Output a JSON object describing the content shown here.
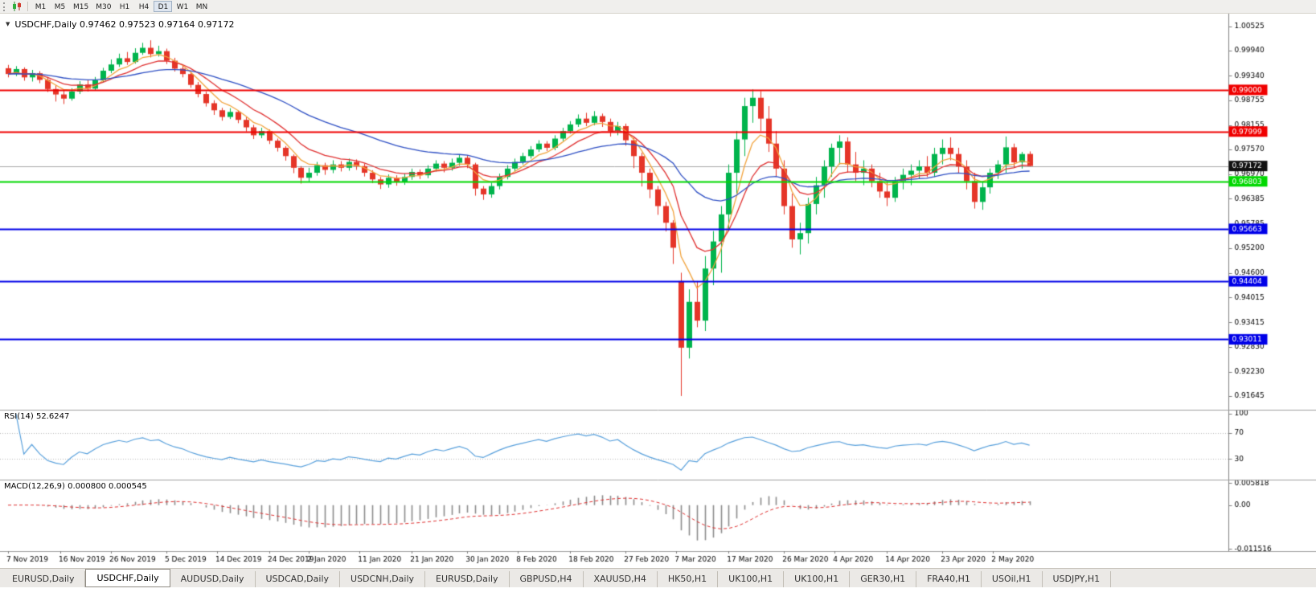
{
  "toolbar": {
    "timeframes": [
      {
        "label": "M1",
        "active": false
      },
      {
        "label": "M5",
        "active": false
      },
      {
        "label": "M15",
        "active": false
      },
      {
        "label": "M30",
        "active": false
      },
      {
        "label": "H1",
        "active": false
      },
      {
        "label": "H4",
        "active": false
      },
      {
        "label": "D1",
        "active": true
      },
      {
        "label": "W1",
        "active": false
      },
      {
        "label": "MN",
        "active": false
      }
    ]
  },
  "chart": {
    "symbol": "USDCHF",
    "period": "Daily",
    "header_text": "USDCHF,Daily 0.97462 0.97523 0.97164 0.97172",
    "open": "0.97462",
    "high": "0.97523",
    "low": "0.97164",
    "close": "0.97172"
  },
  "indicators": {
    "rsi_label": "RSI(14) 52.6247",
    "macd_label": "MACD(12,26,9) 0.000800 0.000545"
  },
  "tabs": [
    {
      "label": "EURUSD,Daily",
      "active": false
    },
    {
      "label": "USDCHF,Daily",
      "active": true
    },
    {
      "label": "AUDUSD,Daily",
      "active": false
    },
    {
      "label": "USDCAD,Daily",
      "active": false
    },
    {
      "label": "USDCNH,Daily",
      "active": false
    },
    {
      "label": "EURUSD,Daily",
      "active": false
    },
    {
      "label": "GBPUSD,H4",
      "active": false
    },
    {
      "label": "XAUUSD,H4",
      "active": false
    },
    {
      "label": "HK50,H1",
      "active": false
    },
    {
      "label": "UK100,H1",
      "active": false
    },
    {
      "label": "UK100,H1",
      "active": false
    },
    {
      "label": "GER30,H1",
      "active": false
    },
    {
      "label": "FRA40,H1",
      "active": false
    },
    {
      "label": "USOil,H1",
      "active": false
    },
    {
      "label": "USDJPY,H1",
      "active": false
    }
  ],
  "chart_data": {
    "type": "candlestick",
    "title": "USDCHF Daily",
    "colors": {
      "background": "#ffffff",
      "bull": "#00b44c",
      "bear": "#e53528",
      "axis_text": "#000000",
      "axis_line": "#808080",
      "divider": "#a0a0a0",
      "current_price_line": "#a8a8a8",
      "current_price_box": "#111111"
    },
    "price_pane": {
      "ylim": [
        0.9132,
        1.0083
      ],
      "y_ticks": [
        "1.00525",
        "0.99940",
        "0.99340",
        "0.98755",
        "0.98155",
        "0.97570",
        "0.96970",
        "0.96385",
        "0.95785",
        "0.95200",
        "0.94600",
        "0.94015",
        "0.93415",
        "0.92830",
        "0.92230",
        "0.91645"
      ],
      "current_price": {
        "value": 0.97172,
        "label": "0.97172"
      },
      "horizontal_lines": [
        {
          "value": 0.99,
          "label": "0.99000",
          "color": "#f00000",
          "width": 2
        },
        {
          "value": 0.97999,
          "label": "0.97999",
          "color": "#f00000",
          "width": 2
        },
        {
          "value": 0.96803,
          "label": "0.96803",
          "color": "#00d800",
          "width": 2
        },
        {
          "value": 0.95663,
          "label": "0.95663",
          "color": "#0000e8",
          "width": 2
        },
        {
          "value": 0.94404,
          "label": "0.94404",
          "color": "#0000e8",
          "width": 2
        },
        {
          "value": 0.93011,
          "label": "0.93011",
          "color": "#0000e8",
          "width": 2
        }
      ],
      "moving_averages": [
        {
          "period": 5,
          "method": "ema",
          "color": "#f2a33c"
        },
        {
          "period": 10,
          "method": "ema",
          "color": "#e03030"
        },
        {
          "period": 30,
          "method": "ema",
          "color": "#2e4fc4"
        }
      ]
    },
    "rsi_pane": {
      "period": 14,
      "value": 52.6247,
      "levels": [
        70,
        30
      ],
      "y_ticks": [
        "100",
        "70",
        "30"
      ],
      "line_color": "#58a0dc"
    },
    "macd_pane": {
      "fast": 12,
      "slow": 26,
      "signal": 9,
      "macd_value": 0.0008,
      "signal_value": 0.000545,
      "ylim": [
        -0.0121,
        0.0065
      ],
      "y_ticks": [
        "0.005818",
        "0.00",
        "-0.011516"
      ],
      "histogram_color": "#8c8c8c",
      "signal_color": "#e03030"
    },
    "x_labels": [
      {
        "text": "7 Nov 2019",
        "index": 0
      },
      {
        "text": "16 Nov 2019",
        "index": 6.6
      },
      {
        "text": "26 Nov 2019",
        "index": 13
      },
      {
        "text": "5 Dec 2019",
        "index": 20
      },
      {
        "text": "14 Dec 2019",
        "index": 26.4
      },
      {
        "text": "24 Dec 2019",
        "index": 33
      },
      {
        "text": "2 Jan 2020",
        "index": 38
      },
      {
        "text": "11 Jan 2020",
        "index": 44.4
      },
      {
        "text": "21 Jan 2020",
        "index": 51
      },
      {
        "text": "30 Jan 2020",
        "index": 58
      },
      {
        "text": "8 Feb 2020",
        "index": 64.4
      },
      {
        "text": "18 Feb 2020",
        "index": 71
      },
      {
        "text": "27 Feb 2020",
        "index": 78
      },
      {
        "text": "7 Mar 2020",
        "index": 84.4
      },
      {
        "text": "17 Mar 2020",
        "index": 91
      },
      {
        "text": "26 Mar 2020",
        "index": 98
      },
      {
        "text": "4 Apr 2020",
        "index": 104.4
      },
      {
        "text": "14 Apr 2020",
        "index": 111
      },
      {
        "text": "23 Apr 2020",
        "index": 118
      },
      {
        "text": "2 May 2020",
        "index": 124.4
      }
    ],
    "candles": [
      [
        0.9952,
        0.996,
        0.993,
        0.9938
      ],
      [
        0.9938,
        0.9957,
        0.9933,
        0.995
      ],
      [
        0.995,
        0.9954,
        0.9922,
        0.993
      ],
      [
        0.993,
        0.9948,
        0.992,
        0.994
      ],
      [
        0.994,
        0.9945,
        0.9916,
        0.9924
      ],
      [
        0.9924,
        0.9931,
        0.9895,
        0.9902
      ],
      [
        0.9902,
        0.9911,
        0.9872,
        0.9889
      ],
      [
        0.9889,
        0.9899,
        0.9866,
        0.9879
      ],
      [
        0.9879,
        0.9904,
        0.9874,
        0.9896
      ],
      [
        0.9896,
        0.9921,
        0.989,
        0.9913
      ],
      [
        0.9913,
        0.9923,
        0.9896,
        0.9903
      ],
      [
        0.9903,
        0.9931,
        0.9899,
        0.9923
      ],
      [
        0.9923,
        0.9953,
        0.9918,
        0.9946
      ],
      [
        0.9946,
        0.9973,
        0.994,
        0.9961
      ],
      [
        0.9961,
        0.9987,
        0.9955,
        0.9976
      ],
      [
        0.9976,
        0.9991,
        0.996,
        0.9967
      ],
      [
        0.9967,
        1.0,
        0.9963,
        0.9989
      ],
      [
        0.9989,
        1.0013,
        0.9984,
        1.0001
      ],
      [
        1.0001,
        1.0019,
        0.9978,
        0.9986
      ],
      [
        0.9986,
        1.0006,
        0.998,
        0.9993
      ],
      [
        0.9993,
        0.9999,
        0.9962,
        0.997
      ],
      [
        0.997,
        0.9977,
        0.9944,
        0.9951
      ],
      [
        0.9951,
        0.9959,
        0.993,
        0.9938
      ],
      [
        0.9938,
        0.9943,
        0.9905,
        0.9912
      ],
      [
        0.9912,
        0.9919,
        0.9882,
        0.989
      ],
      [
        0.989,
        0.9896,
        0.986,
        0.9868
      ],
      [
        0.9868,
        0.9875,
        0.984,
        0.9851
      ],
      [
        0.9851,
        0.9857,
        0.9826,
        0.9835
      ],
      [
        0.9835,
        0.9856,
        0.983,
        0.9847
      ],
      [
        0.9847,
        0.9851,
        0.982,
        0.9828
      ],
      [
        0.9828,
        0.9835,
        0.98,
        0.981
      ],
      [
        0.981,
        0.9816,
        0.9782,
        0.9791
      ],
      [
        0.9791,
        0.9809,
        0.9784,
        0.9801
      ],
      [
        0.9801,
        0.9805,
        0.977,
        0.9778
      ],
      [
        0.9778,
        0.9783,
        0.9752,
        0.9761
      ],
      [
        0.9761,
        0.9765,
        0.973,
        0.9741
      ],
      [
        0.9741,
        0.9745,
        0.97,
        0.9713
      ],
      [
        0.9713,
        0.9717,
        0.9675,
        0.9689
      ],
      [
        0.9689,
        0.9713,
        0.968,
        0.9701
      ],
      [
        0.9701,
        0.9727,
        0.9694,
        0.9719
      ],
      [
        0.9719,
        0.9725,
        0.9696,
        0.9708
      ],
      [
        0.9708,
        0.9731,
        0.97,
        0.9721
      ],
      [
        0.9721,
        0.9729,
        0.9704,
        0.9713
      ],
      [
        0.9713,
        0.9735,
        0.9706,
        0.9727
      ],
      [
        0.9727,
        0.9733,
        0.9708,
        0.9717
      ],
      [
        0.9717,
        0.9723,
        0.9692,
        0.9701
      ],
      [
        0.9701,
        0.9707,
        0.9676,
        0.9685
      ],
      [
        0.9685,
        0.9691,
        0.9662,
        0.9673
      ],
      [
        0.9673,
        0.9697,
        0.9665,
        0.9689
      ],
      [
        0.9689,
        0.9695,
        0.967,
        0.9679
      ],
      [
        0.9679,
        0.9699,
        0.9672,
        0.9691
      ],
      [
        0.9691,
        0.9711,
        0.9684,
        0.9703
      ],
      [
        0.9703,
        0.9709,
        0.9686,
        0.9695
      ],
      [
        0.9695,
        0.9719,
        0.9688,
        0.9711
      ],
      [
        0.9711,
        0.9731,
        0.9704,
        0.9723
      ],
      [
        0.9723,
        0.9729,
        0.9702,
        0.9713
      ],
      [
        0.9713,
        0.9735,
        0.9706,
        0.9725
      ],
      [
        0.9725,
        0.9745,
        0.9718,
        0.9737
      ],
      [
        0.9737,
        0.9743,
        0.9712,
        0.9721
      ],
      [
        0.9721,
        0.9725,
        0.9646,
        0.9663
      ],
      [
        0.9663,
        0.9669,
        0.9636,
        0.9649
      ],
      [
        0.9649,
        0.9677,
        0.9641,
        0.9669
      ],
      [
        0.9669,
        0.9699,
        0.9661,
        0.9691
      ],
      [
        0.9691,
        0.9719,
        0.9685,
        0.9711
      ],
      [
        0.9711,
        0.9735,
        0.9705,
        0.9727
      ],
      [
        0.9727,
        0.9749,
        0.9721,
        0.9741
      ],
      [
        0.9741,
        0.9765,
        0.9735,
        0.9757
      ],
      [
        0.9757,
        0.9779,
        0.9751,
        0.9771
      ],
      [
        0.9771,
        0.9777,
        0.9753,
        0.9761
      ],
      [
        0.9761,
        0.9791,
        0.9755,
        0.9783
      ],
      [
        0.9783,
        0.9809,
        0.9777,
        0.9801
      ],
      [
        0.9801,
        0.9825,
        0.9795,
        0.9817
      ],
      [
        0.9817,
        0.9841,
        0.9811,
        0.9831
      ],
      [
        0.9831,
        0.9845,
        0.9813,
        0.9821
      ],
      [
        0.9821,
        0.9849,
        0.9815,
        0.9837
      ],
      [
        0.9837,
        0.9843,
        0.9811,
        0.9823
      ],
      [
        0.9823,
        0.9831,
        0.9788,
        0.9801
      ],
      [
        0.9801,
        0.9823,
        0.9791,
        0.9813
      ],
      [
        0.9813,
        0.9819,
        0.9766,
        0.9779
      ],
      [
        0.9779,
        0.9785,
        0.9712,
        0.9741
      ],
      [
        0.9741,
        0.9749,
        0.9668,
        0.9701
      ],
      [
        0.9701,
        0.9711,
        0.964,
        0.9661
      ],
      [
        0.9661,
        0.9669,
        0.96,
        0.9621
      ],
      [
        0.9621,
        0.9631,
        0.956,
        0.9581
      ],
      [
        0.9581,
        0.9587,
        0.9482,
        0.9521
      ],
      [
        0.9441,
        0.9461,
        0.9165,
        0.9281
      ],
      [
        0.9281,
        0.9421,
        0.9255,
        0.9391
      ],
      [
        0.9391,
        0.9441,
        0.933,
        0.9346
      ],
      [
        0.9346,
        0.9501,
        0.9321,
        0.9471
      ],
      [
        0.9471,
        0.9561,
        0.9431,
        0.9536
      ],
      [
        0.9536,
        0.9621,
        0.9461,
        0.9601
      ],
      [
        0.9601,
        0.9721,
        0.9561,
        0.9701
      ],
      [
        0.9701,
        0.9801,
        0.9651,
        0.9781
      ],
      [
        0.9781,
        0.9881,
        0.9741,
        0.9861
      ],
      [
        0.9861,
        0.9901,
        0.9821,
        0.9881
      ],
      [
        0.9881,
        0.9897,
        0.9801,
        0.9831
      ],
      [
        0.9831,
        0.9861,
        0.9751,
        0.9771
      ],
      [
        0.9771,
        0.9801,
        0.9691,
        0.9711
      ],
      [
        0.9711,
        0.9731,
        0.9601,
        0.9621
      ],
      [
        0.9621,
        0.9651,
        0.9521,
        0.9541
      ],
      [
        0.9541,
        0.9581,
        0.9505,
        0.9556
      ],
      [
        0.9556,
        0.9641,
        0.9531,
        0.9626
      ],
      [
        0.9626,
        0.9691,
        0.9601,
        0.9671
      ],
      [
        0.9671,
        0.9731,
        0.9641,
        0.9716
      ],
      [
        0.9716,
        0.9771,
        0.9691,
        0.9761
      ],
      [
        0.9761,
        0.9791,
        0.9721,
        0.9776
      ],
      [
        0.9776,
        0.9786,
        0.9701,
        0.9721
      ],
      [
        0.9721,
        0.9751,
        0.9681,
        0.9701
      ],
      [
        0.9701,
        0.9731,
        0.9671,
        0.9711
      ],
      [
        0.9711,
        0.9721,
        0.9666,
        0.9681
      ],
      [
        0.9681,
        0.9701,
        0.9641,
        0.9656
      ],
      [
        0.9656,
        0.9681,
        0.9621,
        0.9641
      ],
      [
        0.9641,
        0.9691,
        0.9631,
        0.9681
      ],
      [
        0.9681,
        0.9711,
        0.9661,
        0.9696
      ],
      [
        0.9696,
        0.9721,
        0.9671,
        0.9706
      ],
      [
        0.9706,
        0.9731,
        0.9686,
        0.9716
      ],
      [
        0.9716,
        0.9741,
        0.9691,
        0.9701
      ],
      [
        0.9701,
        0.9761,
        0.9691,
        0.9746
      ],
      [
        0.9746,
        0.9781,
        0.9721,
        0.9761
      ],
      [
        0.9761,
        0.9786,
        0.9731,
        0.9746
      ],
      [
        0.9746,
        0.9761,
        0.9701,
        0.9716
      ],
      [
        0.9716,
        0.9731,
        0.9661,
        0.9681
      ],
      [
        0.9681,
        0.9701,
        0.9615,
        0.9631
      ],
      [
        0.9631,
        0.9681,
        0.9612,
        0.9666
      ],
      [
        0.9666,
        0.9711,
        0.9651,
        0.9701
      ],
      [
        0.9701,
        0.9731,
        0.9686,
        0.9721
      ],
      [
        0.9721,
        0.9788,
        0.9701,
        0.9762
      ],
      [
        0.9762,
        0.9771,
        0.9715,
        0.9726
      ],
      [
        0.9726,
        0.9751,
        0.9711,
        0.9746
      ],
      [
        0.97462,
        0.97523,
        0.97164,
        0.97172
      ]
    ]
  }
}
